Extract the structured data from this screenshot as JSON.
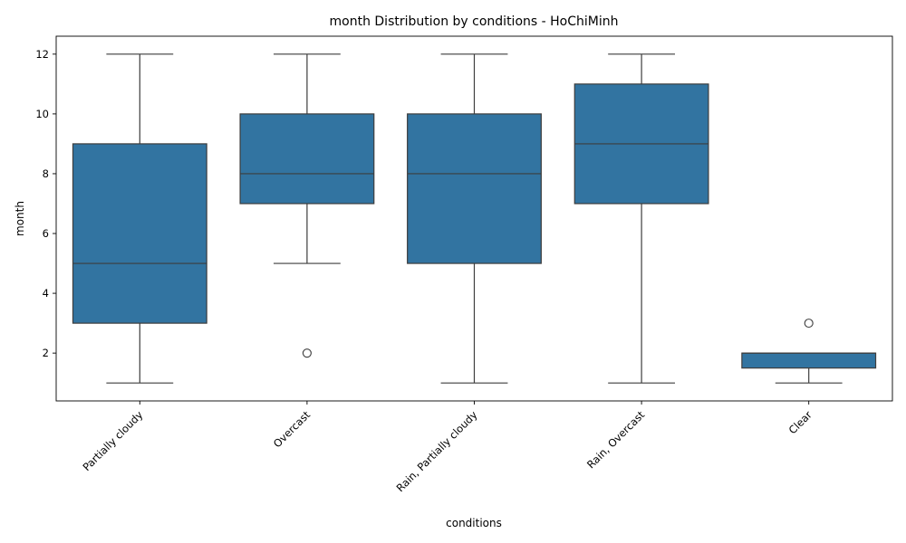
{
  "chart_data": {
    "type": "box",
    "title": "month Distribution by conditions - HoChiMinh",
    "xlabel": "conditions",
    "ylabel": "month",
    "ylim": [
      0.4,
      12.6
    ],
    "yticks": [
      2,
      4,
      6,
      8,
      10,
      12
    ],
    "grid": false,
    "box_color": "#3274a1",
    "line_color": "#3d3d3d",
    "categories": [
      "Partially cloudy",
      "Overcast",
      "Rain, Partially cloudy",
      "Rain, Overcast",
      "Clear"
    ],
    "boxes": [
      {
        "category": "Partially cloudy",
        "whisker_low": 1,
        "q1": 3,
        "median": 5,
        "q3": 9,
        "whisker_high": 12,
        "outliers": []
      },
      {
        "category": "Overcast",
        "whisker_low": 5,
        "q1": 7,
        "median": 8,
        "q3": 10,
        "whisker_high": 12,
        "outliers": [
          2
        ]
      },
      {
        "category": "Rain, Partially cloudy",
        "whisker_low": 1,
        "q1": 5,
        "median": 8,
        "q3": 10,
        "whisker_high": 12,
        "outliers": []
      },
      {
        "category": "Rain, Overcast",
        "whisker_low": 1,
        "q1": 7,
        "median": 9,
        "q3": 11,
        "whisker_high": 12,
        "outliers": []
      },
      {
        "category": "Clear",
        "whisker_low": 1,
        "q1": 1.5,
        "median": 2,
        "q3": 2,
        "whisker_high": 2,
        "outliers": [
          3
        ]
      }
    ]
  }
}
